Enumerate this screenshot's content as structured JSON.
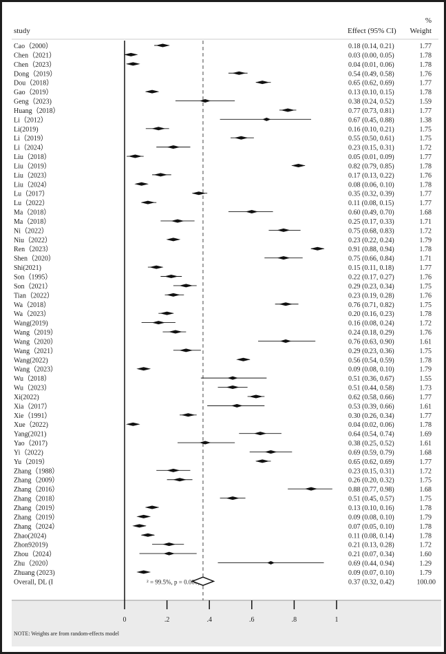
{
  "chart_data": {
    "type": "forest",
    "header": {
      "study": "study",
      "effect": "Effect (95% CI)",
      "weight_pct": "%",
      "weight": "Weight"
    },
    "xlim": [
      0,
      1
    ],
    "x_ticks": [
      0,
      0.2,
      0.4,
      0.6,
      0.8,
      1
    ],
    "x_tick_labels": [
      "0",
      ".2",
      ".4",
      ".6",
      ".8",
      "1"
    ],
    "reference_line": 0,
    "overall_line": 0.37,
    "studies": [
      {
        "name": "Cao（2000）",
        "es": 0.18,
        "lo": 0.14,
        "hi": 0.21,
        "label": "0.18 (0.14, 0.21)",
        "weight": "1.77"
      },
      {
        "name": "Chen（2021）",
        "es": 0.03,
        "lo": 0.0,
        "hi": 0.05,
        "label": "0.03 (0.00, 0.05)",
        "weight": "1.78"
      },
      {
        "name": "Chen（2023）",
        "es": 0.04,
        "lo": 0.01,
        "hi": 0.06,
        "label": "0.04 (0.01, 0.06)",
        "weight": "1.78"
      },
      {
        "name": "Dong（2019）",
        "es": 0.54,
        "lo": 0.49,
        "hi": 0.58,
        "label": "0.54 (0.49, 0.58)",
        "weight": "1.76"
      },
      {
        "name": "Dou（2018）",
        "es": 0.65,
        "lo": 0.62,
        "hi": 0.69,
        "label": "0.65 (0.62, 0.69)",
        "weight": "1.77"
      },
      {
        "name": "Gao（2019）",
        "es": 0.13,
        "lo": 0.1,
        "hi": 0.15,
        "label": "0.13 (0.10, 0.15)",
        "weight": "1.78"
      },
      {
        "name": "Geng（2023)",
        "es": 0.38,
        "lo": 0.24,
        "hi": 0.52,
        "label": "0.38 (0.24, 0.52)",
        "weight": "1.59"
      },
      {
        "name": "Huang（2018）",
        "es": 0.77,
        "lo": 0.73,
        "hi": 0.81,
        "label": "0.77 (0.73, 0.81)",
        "weight": "1.77"
      },
      {
        "name": "Li（2012）",
        "es": 0.67,
        "lo": 0.45,
        "hi": 0.88,
        "label": "0.67 (0.45, 0.88)",
        "weight": "1.38"
      },
      {
        "name": "Li(2019)",
        "es": 0.16,
        "lo": 0.1,
        "hi": 0.21,
        "label": "0.16 (0.10, 0.21)",
        "weight": "1.75"
      },
      {
        "name": "Li（2019）",
        "es": 0.55,
        "lo": 0.5,
        "hi": 0.61,
        "label": "0.55 (0.50, 0.61)",
        "weight": "1.75"
      },
      {
        "name": "Li（2024）",
        "es": 0.23,
        "lo": 0.15,
        "hi": 0.31,
        "label": "0.23 (0.15, 0.31)",
        "weight": "1.72"
      },
      {
        "name": "Liu（2018）",
        "es": 0.05,
        "lo": 0.01,
        "hi": 0.09,
        "label": "0.05 (0.01, 0.09)",
        "weight": "1.77"
      },
      {
        "name": "Liu（2019）",
        "es": 0.82,
        "lo": 0.79,
        "hi": 0.85,
        "label": "0.82 (0.79, 0.85)",
        "weight": "1.78"
      },
      {
        "name": "Liu（2023）",
        "es": 0.17,
        "lo": 0.13,
        "hi": 0.22,
        "label": "0.17 (0.13, 0.22)",
        "weight": "1.76"
      },
      {
        "name": "Liu（2024）",
        "es": 0.08,
        "lo": 0.06,
        "hi": 0.1,
        "label": "0.08 (0.06, 0.10)",
        "weight": "1.78"
      },
      {
        "name": "Lu（2017）",
        "es": 0.35,
        "lo": 0.32,
        "hi": 0.39,
        "label": "0.35 (0.32, 0.39)",
        "weight": "1.77"
      },
      {
        "name": "Lu（2022）",
        "es": 0.11,
        "lo": 0.08,
        "hi": 0.15,
        "label": "0.11 (0.08, 0.15)",
        "weight": "1.77"
      },
      {
        "name": "Ma（2018）",
        "es": 0.6,
        "lo": 0.49,
        "hi": 0.7,
        "label": "0.60 (0.49, 0.70)",
        "weight": "1.68"
      },
      {
        "name": "Ma（2018）",
        "es": 0.25,
        "lo": 0.17,
        "hi": 0.33,
        "label": "0.25 (0.17, 0.33)",
        "weight": "1.71"
      },
      {
        "name": "Ni（2022）",
        "es": 0.75,
        "lo": 0.68,
        "hi": 0.83,
        "label": "0.75 (0.68, 0.83)",
        "weight": "1.72"
      },
      {
        "name": "Niu（2022）",
        "es": 0.23,
        "lo": 0.22,
        "hi": 0.24,
        "label": "0.23 (0.22, 0.24)",
        "weight": "1.79"
      },
      {
        "name": "Ren（2023）",
        "es": 0.91,
        "lo": 0.88,
        "hi": 0.94,
        "label": "0.91 (0.88, 0.94)",
        "weight": "1.78"
      },
      {
        "name": "Shen（2020）",
        "es": 0.75,
        "lo": 0.66,
        "hi": 0.84,
        "label": "0.75 (0.66, 0.84)",
        "weight": "1.71"
      },
      {
        "name": "Shi(2021)",
        "es": 0.15,
        "lo": 0.11,
        "hi": 0.18,
        "label": "0.15 (0.11, 0.18)",
        "weight": "1.77"
      },
      {
        "name": "Son（1995）",
        "es": 0.22,
        "lo": 0.17,
        "hi": 0.27,
        "label": "0.22 (0.17, 0.27)",
        "weight": "1.76"
      },
      {
        "name": "Son（2021）",
        "es": 0.29,
        "lo": 0.23,
        "hi": 0.34,
        "label": "0.29 (0.23, 0.34)",
        "weight": "1.75"
      },
      {
        "name": "Tian（2022）",
        "es": 0.23,
        "lo": 0.19,
        "hi": 0.28,
        "label": "0.23 (0.19, 0.28)",
        "weight": "1.76"
      },
      {
        "name": "Wa（2018）",
        "es": 0.76,
        "lo": 0.71,
        "hi": 0.82,
        "label": "0.76 (0.71, 0.82)",
        "weight": "1.75"
      },
      {
        "name": "Wa（2023）",
        "es": 0.2,
        "lo": 0.16,
        "hi": 0.23,
        "label": "0.20 (0.16, 0.23)",
        "weight": "1.78"
      },
      {
        "name": "Wang(2019)",
        "es": 0.16,
        "lo": 0.08,
        "hi": 0.24,
        "label": "0.16 (0.08, 0.24)",
        "weight": "1.72"
      },
      {
        "name": "Wang（2019）",
        "es": 0.24,
        "lo": 0.18,
        "hi": 0.29,
        "label": "0.24 (0.18, 0.29)",
        "weight": "1.76"
      },
      {
        "name": "Wang（2020）",
        "es": 0.76,
        "lo": 0.63,
        "hi": 0.9,
        "label": "0.76 (0.63, 0.90)",
        "weight": "1.61"
      },
      {
        "name": "Wang（2021）",
        "es": 0.29,
        "lo": 0.23,
        "hi": 0.36,
        "label": "0.29 (0.23, 0.36)",
        "weight": "1.75"
      },
      {
        "name": "Wang(2022)",
        "es": 0.56,
        "lo": 0.54,
        "hi": 0.59,
        "label": "0.56 (0.54, 0.59)",
        "weight": "1.78"
      },
      {
        "name": "Wang（2023）",
        "es": 0.09,
        "lo": 0.08,
        "hi": 0.1,
        "label": "0.09 (0.08, 0.10)",
        "weight": "1.79"
      },
      {
        "name": "Wu（2018）",
        "es": 0.51,
        "lo": 0.36,
        "hi": 0.67,
        "label": "0.51 (0.36, 0.67)",
        "weight": "1.55"
      },
      {
        "name": "Wu（2023）",
        "es": 0.51,
        "lo": 0.44,
        "hi": 0.58,
        "label": "0.51 (0.44, 0.58)",
        "weight": "1.73"
      },
      {
        "name": "Xi(2022)",
        "es": 0.62,
        "lo": 0.58,
        "hi": 0.66,
        "label": "0.62 (0.58, 0.66)",
        "weight": "1.77"
      },
      {
        "name": "Xia（2017）",
        "es": 0.53,
        "lo": 0.39,
        "hi": 0.66,
        "label": "0.53 (0.39, 0.66)",
        "weight": "1.61"
      },
      {
        "name": "Xie（1991）",
        "es": 0.3,
        "lo": 0.26,
        "hi": 0.34,
        "label": "0.30 (0.26, 0.34)",
        "weight": "1.77"
      },
      {
        "name": "Xue（2022)",
        "es": 0.04,
        "lo": 0.02,
        "hi": 0.06,
        "label": "0.04 (0.02, 0.06)",
        "weight": "1.78"
      },
      {
        "name": "Yang(2021)",
        "es": 0.64,
        "lo": 0.54,
        "hi": 0.74,
        "label": "0.64 (0.54, 0.74)",
        "weight": "1.69"
      },
      {
        "name": "Yao（2017)",
        "es": 0.38,
        "lo": 0.25,
        "hi": 0.52,
        "label": "0.38 (0.25, 0.52)",
        "weight": "1.61"
      },
      {
        "name": "Yi（2022)",
        "es": 0.69,
        "lo": 0.59,
        "hi": 0.79,
        "label": "0.69 (0.59, 0.79)",
        "weight": "1.68"
      },
      {
        "name": "Yu（2019）",
        "es": 0.65,
        "lo": 0.62,
        "hi": 0.69,
        "label": "0.65 (0.62, 0.69)",
        "weight": "1.77"
      },
      {
        "name": "Zhang（1988）",
        "es": 0.23,
        "lo": 0.15,
        "hi": 0.31,
        "label": "0.23 (0.15, 0.31)",
        "weight": "1.72"
      },
      {
        "name": "Zhang（2009）",
        "es": 0.26,
        "lo": 0.2,
        "hi": 0.32,
        "label": "0.26 (0.20, 0.32)",
        "weight": "1.75"
      },
      {
        "name": "Zhang（2016）",
        "es": 0.88,
        "lo": 0.77,
        "hi": 0.98,
        "label": "0.88 (0.77, 0.98)",
        "weight": "1.68"
      },
      {
        "name": "Zhang（2018）",
        "es": 0.51,
        "lo": 0.45,
        "hi": 0.57,
        "label": "0.51 (0.45, 0.57)",
        "weight": "1.75"
      },
      {
        "name": "Zhang（2019）",
        "es": 0.13,
        "lo": 0.1,
        "hi": 0.16,
        "label": "0.13 (0.10, 0.16)",
        "weight": "1.78"
      },
      {
        "name": "Zhang（2019）",
        "es": 0.09,
        "lo": 0.08,
        "hi": 0.1,
        "label": "0.09 (0.08, 0.10)",
        "weight": "1.79"
      },
      {
        "name": "Zhang（2024）",
        "es": 0.07,
        "lo": 0.05,
        "hi": 0.1,
        "label": "0.07 (0.05, 0.10)",
        "weight": "1.78"
      },
      {
        "name": "Zhao(2024)",
        "es": 0.11,
        "lo": 0.08,
        "hi": 0.14,
        "label": "0.11 (0.08, 0.14)",
        "weight": "1.78"
      },
      {
        "name": "Zhon92019)",
        "es": 0.21,
        "lo": 0.13,
        "hi": 0.28,
        "label": "0.21 (0.13, 0.28)",
        "weight": "1.72"
      },
      {
        "name": "Zhou（2024）",
        "es": 0.21,
        "lo": 0.07,
        "hi": 0.34,
        "label": "0.21 (0.07, 0.34)",
        "weight": "1.60"
      },
      {
        "name": "Zhu（2020）",
        "es": 0.69,
        "lo": 0.44,
        "hi": 0.94,
        "label": "0.69 (0.44, 0.94)",
        "weight": "1.29"
      },
      {
        "name": "Zhuang (2023)",
        "es": 0.09,
        "lo": 0.07,
        "hi": 0.1,
        "label": "0.09 (0.07, 0.10)",
        "weight": "1.79"
      }
    ],
    "overall": {
      "name": "Overall, DL (I",
      "heterogeneity": "² = 99.5%, p = 0.000)",
      "es": 0.37,
      "lo": 0.32,
      "hi": 0.42,
      "label": "0.37 (0.32, 0.42)",
      "weight": "100.00"
    },
    "note": "NOTE: Weights are from random-effects model"
  }
}
